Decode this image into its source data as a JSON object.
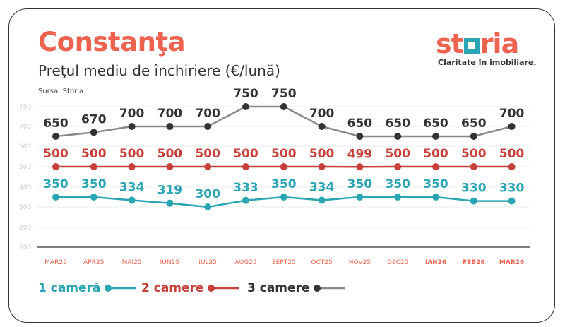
{
  "header": {
    "title": "Constanţa",
    "subtitle": "Preţul mediu de închiriere (€/lună)",
    "source": "Sursa: Storia"
  },
  "logo": {
    "text": "storia",
    "tagline": "Claritate în imobiliare."
  },
  "chart_data": {
    "type": "line",
    "categories": [
      "MAR25",
      "APR25",
      "MAI25",
      "IUN25",
      "IUL25",
      "AUG25",
      "SEPT25",
      "OCT25",
      "NOV25",
      "DEC25",
      "IAN26",
      "FEB26",
      "MAR26"
    ],
    "y_ticks": [
      100,
      200,
      300,
      400,
      500,
      600,
      700,
      750
    ],
    "ylim": [
      100,
      750
    ],
    "grid": true,
    "legend_placement": "bottom-left",
    "series": [
      {
        "name": "1 cameră",
        "color": "#2aa5b3",
        "values": [
          350,
          350,
          334,
          319,
          300,
          333,
          350,
          334,
          350,
          350,
          350,
          330,
          330
        ]
      },
      {
        "name": "2 camere",
        "color": "#c8403a",
        "values": [
          500,
          500,
          500,
          500,
          500,
          500,
          500,
          500,
          499,
          500,
          500,
          500,
          500
        ]
      },
      {
        "name": "3 camere",
        "color": "#333333",
        "line_color": "#8a8a8a",
        "values": [
          650,
          670,
          700,
          700,
          700,
          750,
          750,
          700,
          650,
          650,
          650,
          650,
          700
        ]
      }
    ]
  }
}
